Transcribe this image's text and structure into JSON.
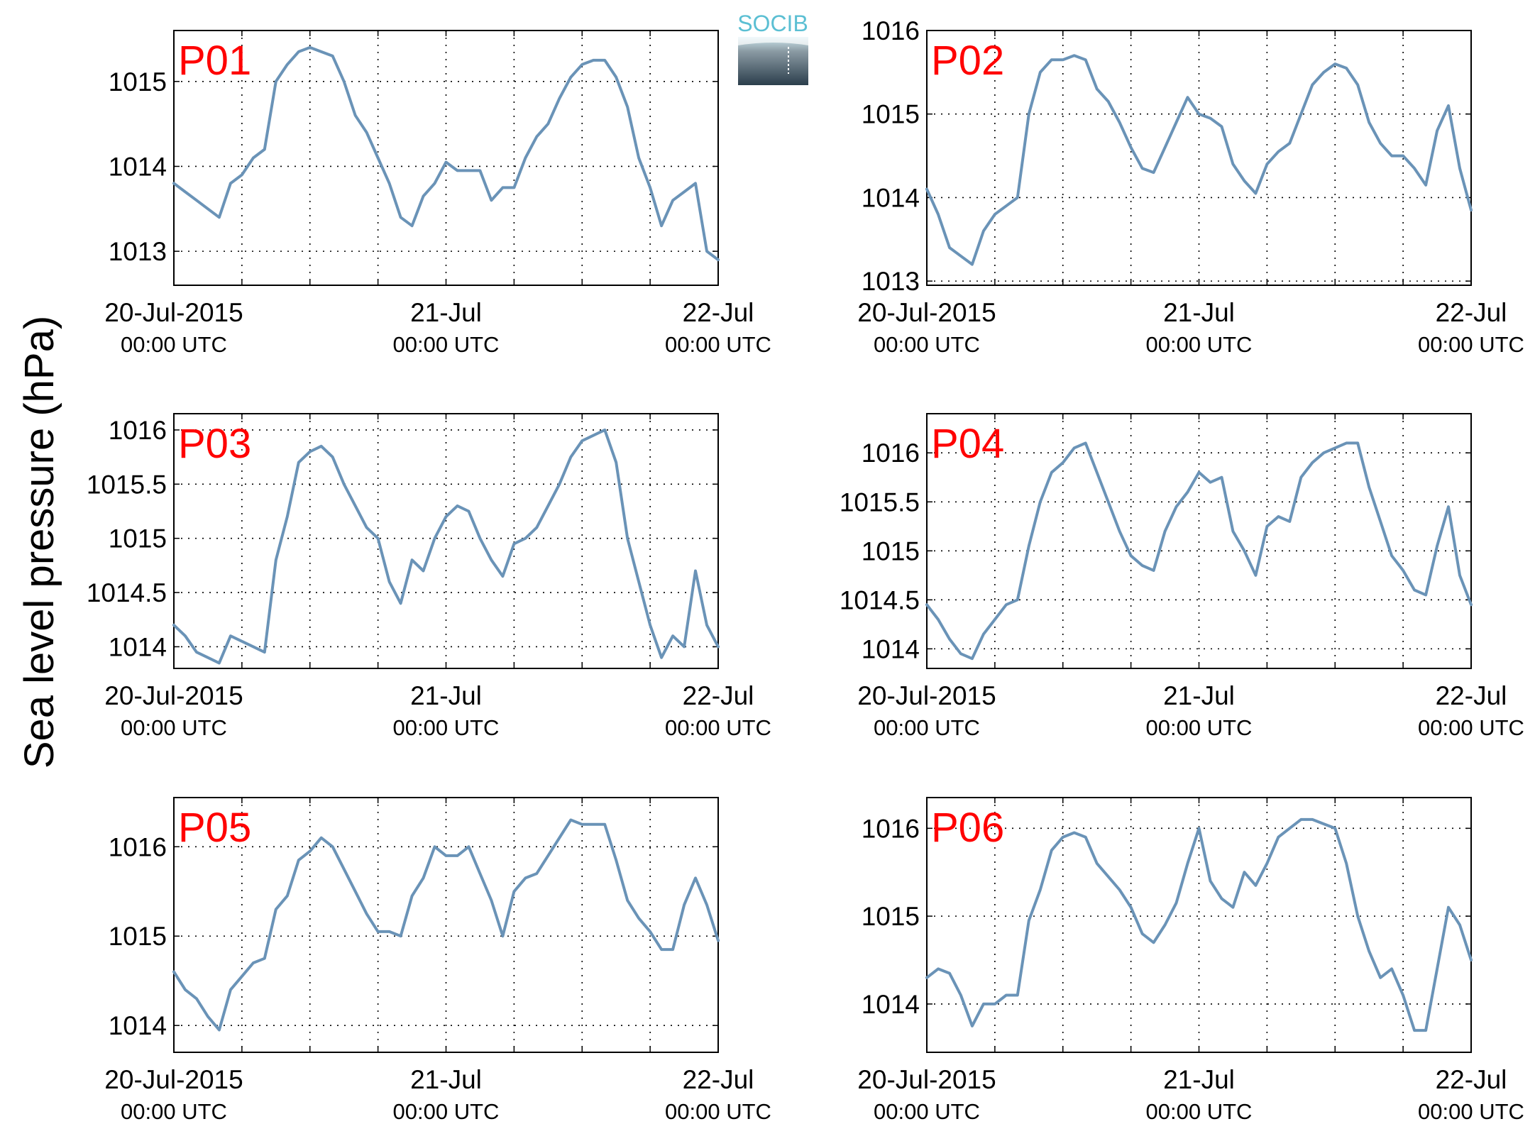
{
  "figure": {
    "ylabel": "Sea level pressure (hPa)",
    "logo_text": "SOCIB"
  },
  "colors": {
    "line": "#6a93b7",
    "label": "#ff0000",
    "logo_top": "#5bbfd3",
    "logo_bottom": "#2b3e4c"
  },
  "chart_data": [
    {
      "type": "line",
      "panel_label": "P01",
      "x_range": [
        "2015-07-20 00:00",
        "2015-07-22 00:00"
      ],
      "ylim": [
        1012.6,
        1015.6
      ],
      "yticks": [
        1013,
        1014,
        1015
      ],
      "ytick_labels": [
        "1013",
        "1014",
        "1015"
      ],
      "xtick_labels": [
        "20-Jul-2015",
        "21-Jul",
        "22-Jul"
      ],
      "xtick_sublabels": [
        "00:00 UTC",
        "00:00 UTC",
        "00:00 UTC"
      ],
      "grid": true,
      "series": [
        {
          "x_hours": [
            0,
            1,
            2,
            3,
            4,
            5,
            6,
            7,
            8,
            9,
            10,
            11,
            12,
            13,
            14,
            15,
            16,
            17,
            18,
            19,
            20,
            21,
            22,
            23,
            24,
            25,
            26,
            27,
            28,
            29,
            30,
            31,
            32,
            33,
            34,
            35,
            36,
            37,
            38,
            39,
            40,
            41,
            42,
            43,
            44,
            45,
            46,
            47,
            48
          ],
          "y": [
            1013.8,
            1013.7,
            1013.6,
            1013.5,
            1013.4,
            1013.8,
            1013.9,
            1014.1,
            1014.2,
            1015.0,
            1015.2,
            1015.35,
            1015.4,
            1015.35,
            1015.3,
            1015.0,
            1014.6,
            1014.4,
            1014.1,
            1013.8,
            1013.4,
            1013.3,
            1013.65,
            1013.8,
            1014.05,
            1013.95,
            1013.95,
            1013.95,
            1013.6,
            1013.75,
            1013.75,
            1014.1,
            1014.35,
            1014.5,
            1014.8,
            1015.05,
            1015.2,
            1015.25,
            1015.25,
            1015.05,
            1014.7,
            1014.1,
            1013.75,
            1013.3,
            1013.6,
            1013.7,
            1013.8,
            1013.0,
            1012.9
          ]
        }
      ]
    },
    {
      "type": "line",
      "panel_label": "P02",
      "x_range": [
        "2015-07-20 00:00",
        "2015-07-22 00:00"
      ],
      "ylim": [
        1012.95,
        1016.0
      ],
      "yticks": [
        1013,
        1014,
        1015,
        1016
      ],
      "ytick_labels": [
        "1013",
        "1014",
        "1015",
        "1016"
      ],
      "xtick_labels": [
        "20-Jul-2015",
        "21-Jul",
        "22-Jul"
      ],
      "xtick_sublabels": [
        "00:00 UTC",
        "00:00 UTC",
        "00:00 UTC"
      ],
      "grid": true,
      "series": [
        {
          "x_hours": [
            0,
            1,
            2,
            3,
            4,
            5,
            6,
            7,
            8,
            9,
            10,
            11,
            12,
            13,
            14,
            15,
            16,
            17,
            18,
            19,
            20,
            21,
            22,
            23,
            24,
            25,
            26,
            27,
            28,
            29,
            30,
            31,
            32,
            33,
            34,
            35,
            36,
            37,
            38,
            39,
            40,
            41,
            42,
            43,
            44,
            45,
            46,
            47,
            48
          ],
          "y": [
            1014.1,
            1013.8,
            1013.4,
            1013.3,
            1013.2,
            1013.6,
            1013.8,
            1013.9,
            1014.0,
            1015.0,
            1015.5,
            1015.65,
            1015.65,
            1015.7,
            1015.65,
            1015.3,
            1015.15,
            1014.9,
            1014.6,
            1014.35,
            1014.3,
            1014.6,
            1014.9,
            1015.2,
            1015.0,
            1014.95,
            1014.85,
            1014.4,
            1014.2,
            1014.05,
            1014.4,
            1014.55,
            1014.65,
            1015.0,
            1015.35,
            1015.5,
            1015.6,
            1015.55,
            1015.35,
            1014.9,
            1014.65,
            1014.5,
            1014.5,
            1014.35,
            1014.15,
            1014.8,
            1015.1,
            1014.35,
            1013.85
          ]
        }
      ]
    },
    {
      "type": "line",
      "panel_label": "P03",
      "x_range": [
        "2015-07-20 00:00",
        "2015-07-22 00:00"
      ],
      "ylim": [
        1013.8,
        1016.15
      ],
      "yticks": [
        1014,
        1014.5,
        1015,
        1015.5,
        1016
      ],
      "ytick_labels": [
        "1014",
        "1014.5",
        "1015",
        "1015.5",
        "1016"
      ],
      "xtick_labels": [
        "20-Jul-2015",
        "21-Jul",
        "22-Jul"
      ],
      "xtick_sublabels": [
        "00:00 UTC",
        "00:00 UTC",
        "00:00 UTC"
      ],
      "grid": true,
      "series": [
        {
          "x_hours": [
            0,
            1,
            2,
            3,
            4,
            5,
            6,
            7,
            8,
            9,
            10,
            11,
            12,
            13,
            14,
            15,
            16,
            17,
            18,
            19,
            20,
            21,
            22,
            23,
            24,
            25,
            26,
            27,
            28,
            29,
            30,
            31,
            32,
            33,
            34,
            35,
            36,
            37,
            38,
            39,
            40,
            41,
            42,
            43,
            44,
            45,
            46,
            47,
            48
          ],
          "y": [
            1014.2,
            1014.1,
            1013.95,
            1013.9,
            1013.85,
            1014.1,
            1014.05,
            1014.0,
            1013.95,
            1014.8,
            1015.2,
            1015.7,
            1015.8,
            1015.85,
            1015.75,
            1015.5,
            1015.3,
            1015.1,
            1015.0,
            1014.6,
            1014.4,
            1014.8,
            1014.7,
            1015.0,
            1015.2,
            1015.3,
            1015.25,
            1015.0,
            1014.8,
            1014.65,
            1014.95,
            1015.0,
            1015.1,
            1015.3,
            1015.5,
            1015.75,
            1015.9,
            1015.95,
            1016.0,
            1015.7,
            1015.0,
            1014.6,
            1014.2,
            1013.9,
            1014.1,
            1014.0,
            1014.7,
            1014.2,
            1014.0
          ]
        }
      ]
    },
    {
      "type": "line",
      "panel_label": "P04",
      "x_range": [
        "2015-07-20 00:00",
        "2015-07-22 00:00"
      ],
      "ylim": [
        1013.8,
        1016.4
      ],
      "yticks": [
        1014,
        1014.5,
        1015,
        1015.5,
        1016
      ],
      "ytick_labels": [
        "1014",
        "1014.5",
        "1015",
        "1015.5",
        "1016"
      ],
      "xtick_labels": [
        "20-Jul-2015",
        "21-Jul",
        "22-Jul"
      ],
      "xtick_sublabels": [
        "00:00 UTC",
        "00:00 UTC",
        "00:00 UTC"
      ],
      "grid": true,
      "series": [
        {
          "x_hours": [
            0,
            1,
            2,
            3,
            4,
            5,
            6,
            7,
            8,
            9,
            10,
            11,
            12,
            13,
            14,
            15,
            16,
            17,
            18,
            19,
            20,
            21,
            22,
            23,
            24,
            25,
            26,
            27,
            28,
            29,
            30,
            31,
            32,
            33,
            34,
            35,
            36,
            37,
            38,
            39,
            40,
            41,
            42,
            43,
            44,
            45,
            46,
            47,
            48
          ],
          "y": [
            1014.45,
            1014.3,
            1014.1,
            1013.95,
            1013.9,
            1014.15,
            1014.3,
            1014.45,
            1014.5,
            1015.05,
            1015.5,
            1015.8,
            1015.9,
            1016.05,
            1016.1,
            1015.8,
            1015.5,
            1015.2,
            1014.95,
            1014.85,
            1014.8,
            1015.2,
            1015.45,
            1015.6,
            1015.8,
            1015.7,
            1015.75,
            1015.2,
            1015.0,
            1014.75,
            1015.25,
            1015.35,
            1015.3,
            1015.75,
            1015.9,
            1016.0,
            1016.05,
            1016.1,
            1016.1,
            1015.65,
            1015.3,
            1014.95,
            1014.8,
            1014.6,
            1014.55,
            1015.05,
            1015.45,
            1014.75,
            1014.45
          ]
        }
      ]
    },
    {
      "type": "line",
      "panel_label": "P05",
      "x_range": [
        "2015-07-20 00:00",
        "2015-07-22 00:00"
      ],
      "ylim": [
        1013.7,
        1016.55
      ],
      "yticks": [
        1014,
        1015,
        1016
      ],
      "ytick_labels": [
        "1014",
        "1015",
        "1016"
      ],
      "xtick_labels": [
        "20-Jul-2015",
        "21-Jul",
        "22-Jul"
      ],
      "xtick_sublabels": [
        "00:00 UTC",
        "00:00 UTC",
        "00:00 UTC"
      ],
      "grid": true,
      "series": [
        {
          "x_hours": [
            0,
            1,
            2,
            3,
            4,
            5,
            6,
            7,
            8,
            9,
            10,
            11,
            12,
            13,
            14,
            15,
            16,
            17,
            18,
            19,
            20,
            21,
            22,
            23,
            24,
            25,
            26,
            27,
            28,
            29,
            30,
            31,
            32,
            33,
            34,
            35,
            36,
            37,
            38,
            39,
            40,
            41,
            42,
            43,
            44,
            45,
            46,
            47,
            48
          ],
          "y": [
            1014.6,
            1014.4,
            1014.3,
            1014.1,
            1013.95,
            1014.4,
            1014.55,
            1014.7,
            1014.75,
            1015.3,
            1015.45,
            1015.85,
            1015.95,
            1016.1,
            1016.0,
            1015.75,
            1015.5,
            1015.25,
            1015.05,
            1015.05,
            1015.0,
            1015.45,
            1015.65,
            1016.0,
            1015.9,
            1015.9,
            1016.0,
            1015.7,
            1015.4,
            1015.0,
            1015.5,
            1015.65,
            1015.7,
            1015.9,
            1016.1,
            1016.3,
            1016.25,
            1016.25,
            1016.25,
            1015.85,
            1015.4,
            1015.2,
            1015.05,
            1014.85,
            1014.85,
            1015.35,
            1015.65,
            1015.35,
            1014.95
          ]
        }
      ]
    },
    {
      "type": "line",
      "panel_label": "P06",
      "x_range": [
        "2015-07-20 00:00",
        "2015-07-22 00:00"
      ],
      "ylim": [
        1013.45,
        1016.35
      ],
      "yticks": [
        1014,
        1015,
        1016
      ],
      "ytick_labels": [
        "1014",
        "1015",
        "1016"
      ],
      "xtick_labels": [
        "20-Jul-2015",
        "21-Jul",
        "22-Jul"
      ],
      "xtick_sublabels": [
        "00:00 UTC",
        "00:00 UTC",
        "00:00 UTC"
      ],
      "grid": true,
      "series": [
        {
          "x_hours": [
            0,
            1,
            2,
            3,
            4,
            5,
            6,
            7,
            8,
            9,
            10,
            11,
            12,
            13,
            14,
            15,
            16,
            17,
            18,
            19,
            20,
            21,
            22,
            23,
            24,
            25,
            26,
            27,
            28,
            29,
            30,
            31,
            32,
            33,
            34,
            35,
            36,
            37,
            38,
            39,
            40,
            41,
            42,
            43,
            44,
            45,
            46,
            47,
            48
          ],
          "y": [
            1014.3,
            1014.4,
            1014.35,
            1014.1,
            1013.75,
            1014.0,
            1014.0,
            1014.1,
            1014.1,
            1014.95,
            1015.3,
            1015.75,
            1015.9,
            1015.95,
            1015.9,
            1015.6,
            1015.45,
            1015.3,
            1015.1,
            1014.8,
            1014.7,
            1014.9,
            1015.15,
            1015.6,
            1016.0,
            1015.4,
            1015.2,
            1015.1,
            1015.5,
            1015.35,
            1015.6,
            1015.9,
            1016.0,
            1016.1,
            1016.1,
            1016.05,
            1016.0,
            1015.6,
            1015.0,
            1014.6,
            1014.3,
            1014.4,
            1014.1,
            1013.7,
            1013.7,
            1014.4,
            1015.1,
            1014.9,
            1014.5
          ]
        }
      ]
    }
  ]
}
